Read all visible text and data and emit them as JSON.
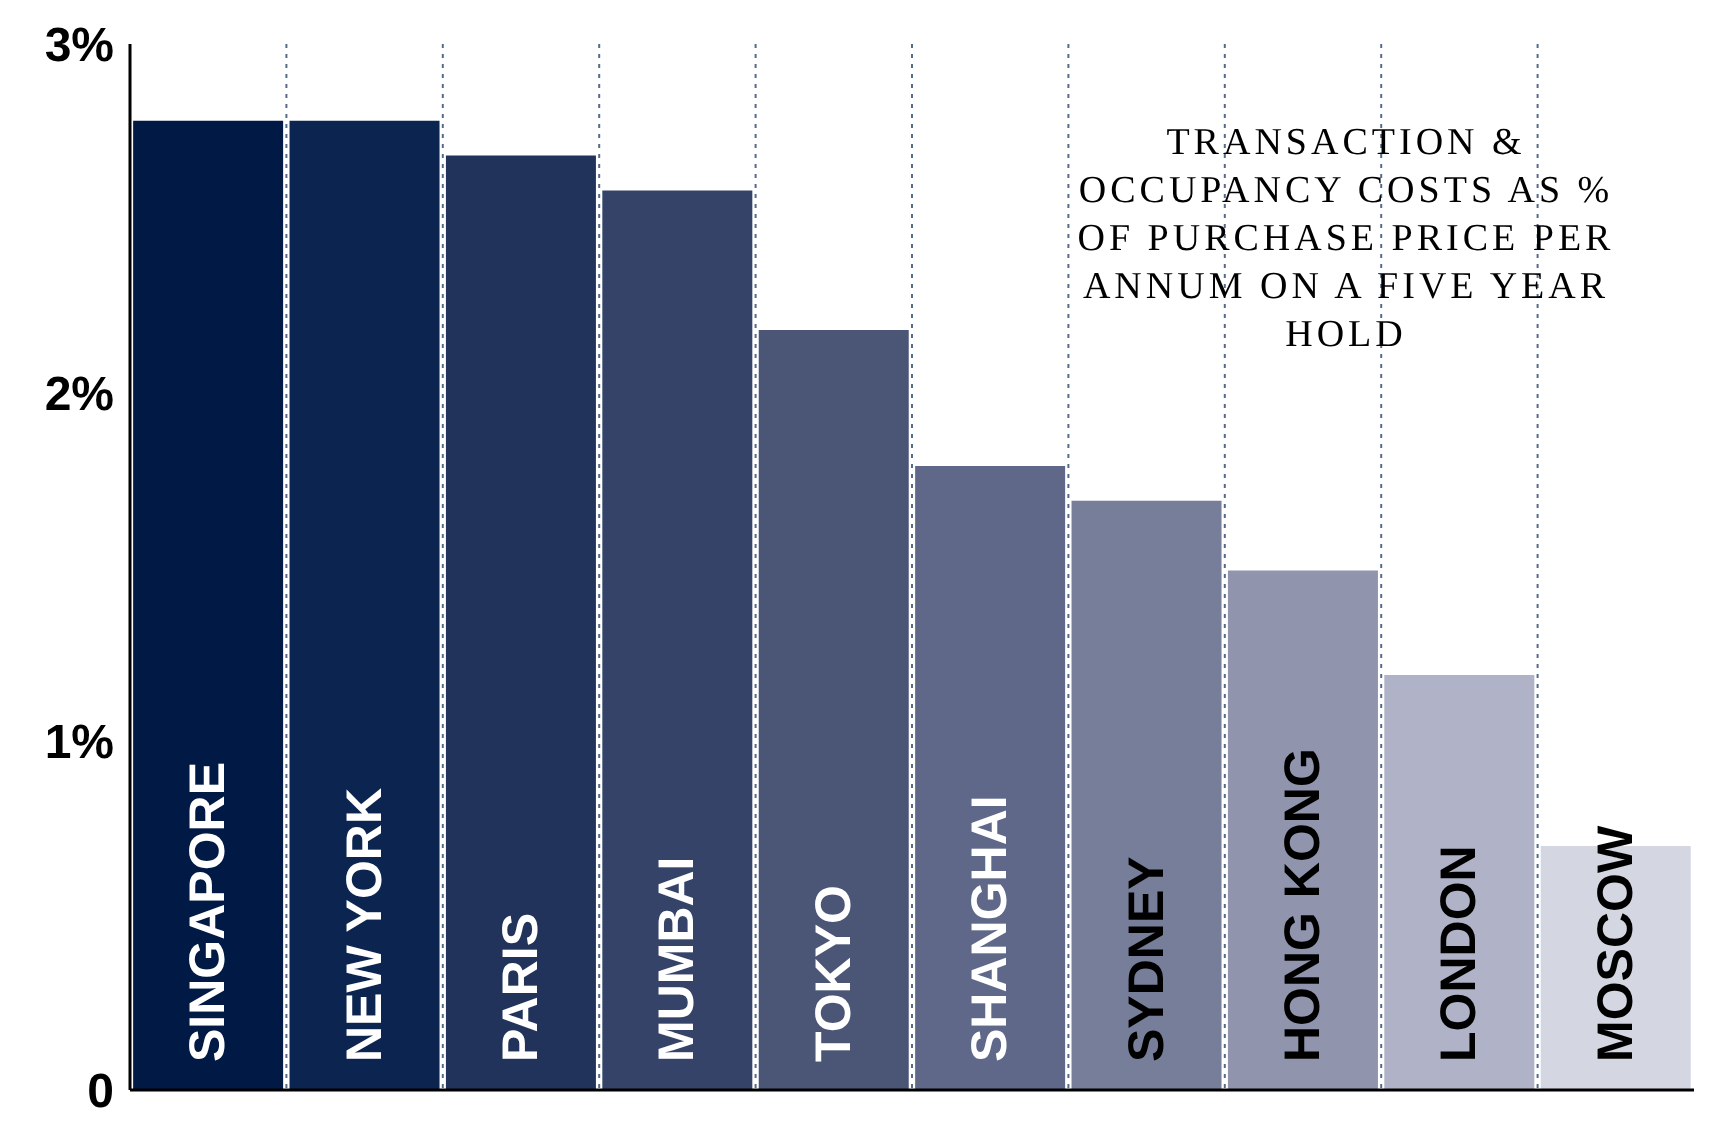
{
  "chart_data": {
    "type": "bar",
    "title": "TRANSACTION & OCCUPANCY COSTS AS % OF PURCHASE PRICE PER ANNUM ON A FIVE YEAR HOLD",
    "categories": [
      "SINGAPORE",
      "NEW YORK",
      "PARIS",
      "MUMBAI",
      "TOKYO",
      "SHANGHAI",
      "SYDNEY",
      "HONG KONG",
      "LONDON",
      "MOSCOW"
    ],
    "values": [
      2.78,
      2.78,
      2.68,
      2.58,
      2.18,
      1.79,
      1.69,
      1.49,
      1.19,
      0.7
    ],
    "colors": [
      "#001a45",
      "#0b2550",
      "#21335b",
      "#364369",
      "#4b5676",
      "#5f6888",
      "#777e99",
      "#9095ad",
      "#b0b3c7",
      "#d4d6e2"
    ],
    "ylim": [
      0,
      3
    ],
    "yticks": [
      {
        "value": 0,
        "label": "0"
      },
      {
        "value": 1,
        "label": "1%"
      },
      {
        "value": 2,
        "label": "2%"
      },
      {
        "value": 3,
        "label": "3%"
      }
    ],
    "grid": "x"
  }
}
